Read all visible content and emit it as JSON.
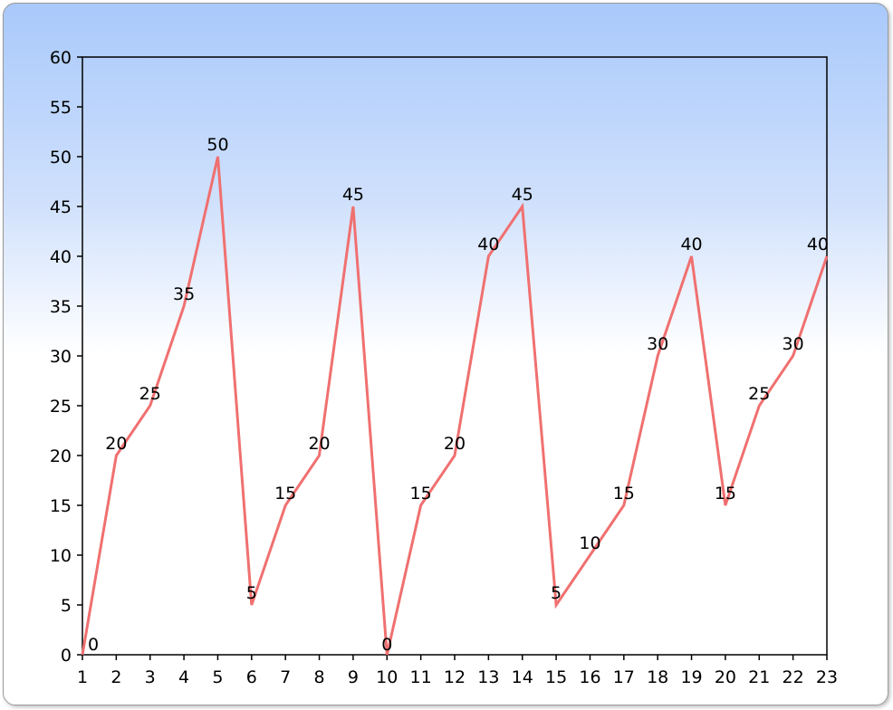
{
  "chart_data": {
    "type": "line",
    "title": "",
    "xlabel": "",
    "ylabel": "",
    "x": [
      1,
      2,
      3,
      4,
      5,
      6,
      7,
      8,
      9,
      10,
      11,
      12,
      13,
      14,
      15,
      16,
      17,
      18,
      19,
      20,
      21,
      22,
      23
    ],
    "values": [
      0,
      20,
      25,
      35,
      50,
      5,
      15,
      20,
      45,
      0,
      15,
      20,
      40,
      45,
      5,
      10,
      15,
      30,
      40,
      15,
      25,
      30,
      40
    ],
    "xlim": [
      1,
      23
    ],
    "ylim": [
      0,
      60
    ],
    "y_ticks": [
      0,
      5,
      10,
      15,
      20,
      25,
      30,
      35,
      40,
      45,
      50,
      55,
      60
    ],
    "x_ticks": [
      1,
      2,
      3,
      4,
      5,
      6,
      7,
      8,
      9,
      10,
      11,
      12,
      13,
      14,
      15,
      16,
      17,
      18,
      19,
      20,
      21,
      22,
      23
    ],
    "series_color": "#f07070",
    "grid": false,
    "legend": "none",
    "data_labels": true
  }
}
